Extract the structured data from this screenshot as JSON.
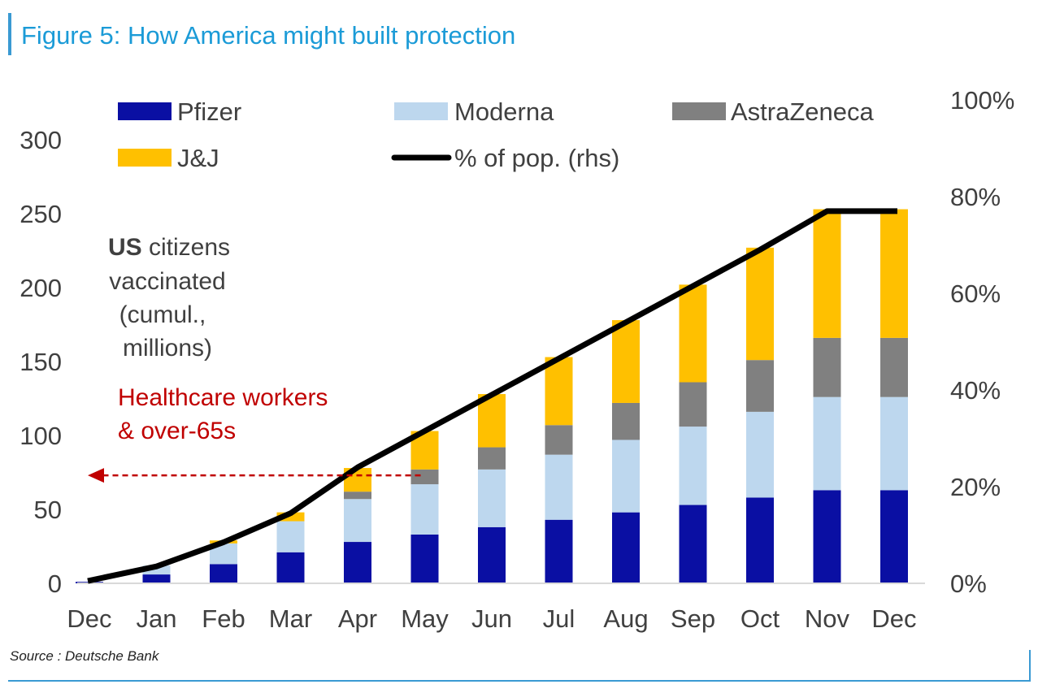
{
  "title": "Figure 5: How America might built protection",
  "source": "Source : Deutsche Bank",
  "annotations": {
    "us_bold": "US",
    "us_rest": " citizens",
    "line2": "vaccinated",
    "line3": "(cumul.,",
    "line4": "millions)",
    "hc_line1": "Healthcare workers",
    "hc_line2": "& over-65s"
  },
  "colors": {
    "pfizer": "#0a0fa3",
    "moderna": "#bdd7ee",
    "astrazeneca": "#808080",
    "jj": "#ffc000",
    "line": "#000000",
    "arrow": "#c00000"
  },
  "chart_data": {
    "type": "bar",
    "stacked": true,
    "categories": [
      "Dec",
      "Jan",
      "Feb",
      "Mar",
      "Apr",
      "May",
      "Jun",
      "Jul",
      "Aug",
      "Sep",
      "Oct",
      "Nov",
      "Dec"
    ],
    "series": [
      {
        "name": "Pfizer",
        "values": [
          1,
          6,
          13,
          21,
          28,
          33,
          38,
          43,
          48,
          53,
          58,
          63,
          63
        ]
      },
      {
        "name": "Moderna",
        "values": [
          0,
          6,
          14,
          21,
          29,
          34,
          39,
          44,
          49,
          53,
          58,
          63,
          63
        ]
      },
      {
        "name": "AstraZeneca",
        "values": [
          0,
          0,
          0,
          0,
          5,
          10,
          15,
          20,
          25,
          30,
          35,
          40,
          40
        ]
      },
      {
        "name": "J&J",
        "values": [
          0,
          0,
          2,
          6,
          16,
          26,
          36,
          46,
          56,
          66,
          76,
          87,
          87
        ]
      }
    ],
    "line_series": {
      "name": "% of pop. (rhs)",
      "axis": "right",
      "values": [
        0.5,
        3.5,
        8.5,
        14.5,
        24,
        31.5,
        39,
        46.5,
        54,
        61.5,
        69,
        77,
        77
      ]
    },
    "ylim_left": [
      0,
      300
    ],
    "yticks_left": [
      "0",
      "50",
      "100",
      "150",
      "200",
      "250",
      "300"
    ],
    "ylim_right": [
      0,
      100
    ],
    "yticks_right": [
      "0%",
      "20%",
      "40%",
      "60%",
      "80%",
      "100%"
    ],
    "legend": [
      "Pfizer",
      "Moderna",
      "AstraZeneca",
      "J&J",
      "% of pop. (rhs)"
    ],
    "legend_position": "top",
    "grid": false,
    "arrow_annotation": {
      "from_category_index": 5,
      "to": "left-axis",
      "y_value": 73
    }
  }
}
